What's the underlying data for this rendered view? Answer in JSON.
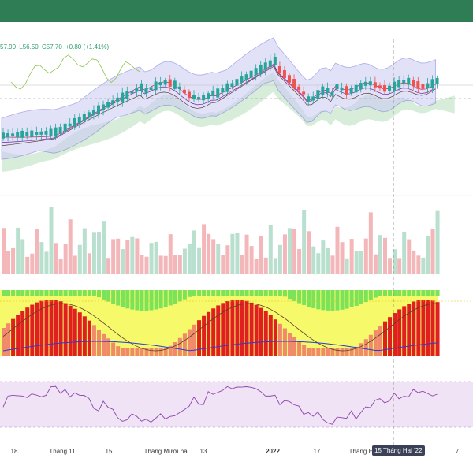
{
  "header": {
    "bar_color": "#2e7d55"
  },
  "ohlc": {
    "open_partial": "57.90",
    "low": "L56.50",
    "close": "C57.70",
    "change": "+0.80 (+1.41%)"
  },
  "colors": {
    "up": "#26a69a",
    "down": "#ef5350",
    "bb_fill": "#c9c9f4",
    "cloud": "#c8e6c9"
  },
  "xaxis": {
    "labels": [
      "18",
      "Tháng 11",
      "15",
      "Tháng Mười hai",
      "13",
      "2022",
      "17",
      "Tháng H",
      "7"
    ],
    "crosshair_label": "15 Tháng Hai '22"
  }
}
